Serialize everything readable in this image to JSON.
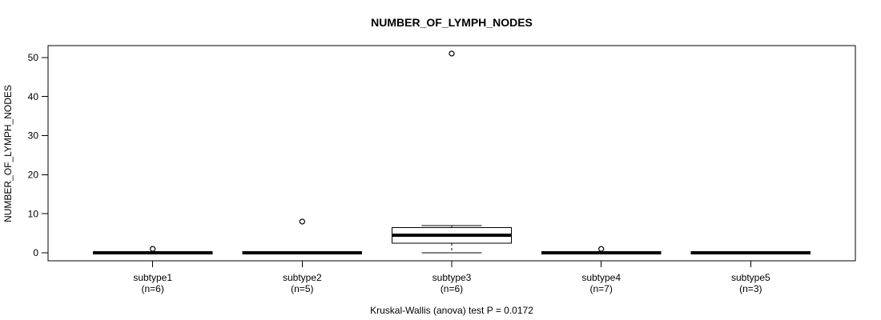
{
  "chart_data": {
    "type": "boxplot",
    "title": "NUMBER_OF_LYMPH_NODES",
    "ylabel": "NUMBER_OF_LYMPH_NODES",
    "footer": "Kruskal-Wallis (anova) test P = 0.0172",
    "ylim": [
      -2.04,
      53.04
    ],
    "yticks": [
      0,
      10,
      20,
      30,
      40,
      50
    ],
    "grid": false,
    "legend": null,
    "colors": {
      "stroke": "#000000",
      "box_fill": "#ffffff",
      "background": "#ffffff"
    },
    "groups": [
      {
        "label": "subtype1",
        "sublabel": "(n=6)",
        "n": 6,
        "q1": 0,
        "median": 0,
        "q3": 0,
        "whisker_low": 0,
        "whisker_high": 0,
        "outliers": [
          1
        ]
      },
      {
        "label": "subtype2",
        "sublabel": "(n=5)",
        "n": 5,
        "q1": 0,
        "median": 0,
        "q3": 0,
        "whisker_low": 0,
        "whisker_high": 0,
        "outliers": [
          8
        ]
      },
      {
        "label": "subtype3",
        "sublabel": "(n=6)",
        "n": 6,
        "q1": 2.5,
        "median": 4.5,
        "q3": 6.5,
        "whisker_low": 0,
        "whisker_high": 7,
        "outliers": [
          51
        ]
      },
      {
        "label": "subtype4",
        "sublabel": "(n=7)",
        "n": 7,
        "q1": 0,
        "median": 0,
        "q3": 0,
        "whisker_low": 0,
        "whisker_high": 0,
        "outliers": [
          1
        ]
      },
      {
        "label": "subtype5",
        "sublabel": "(n=3)",
        "n": 3,
        "q1": 0,
        "median": 0,
        "q3": 0,
        "whisker_low": 0,
        "whisker_high": 0,
        "outliers": []
      }
    ]
  }
}
